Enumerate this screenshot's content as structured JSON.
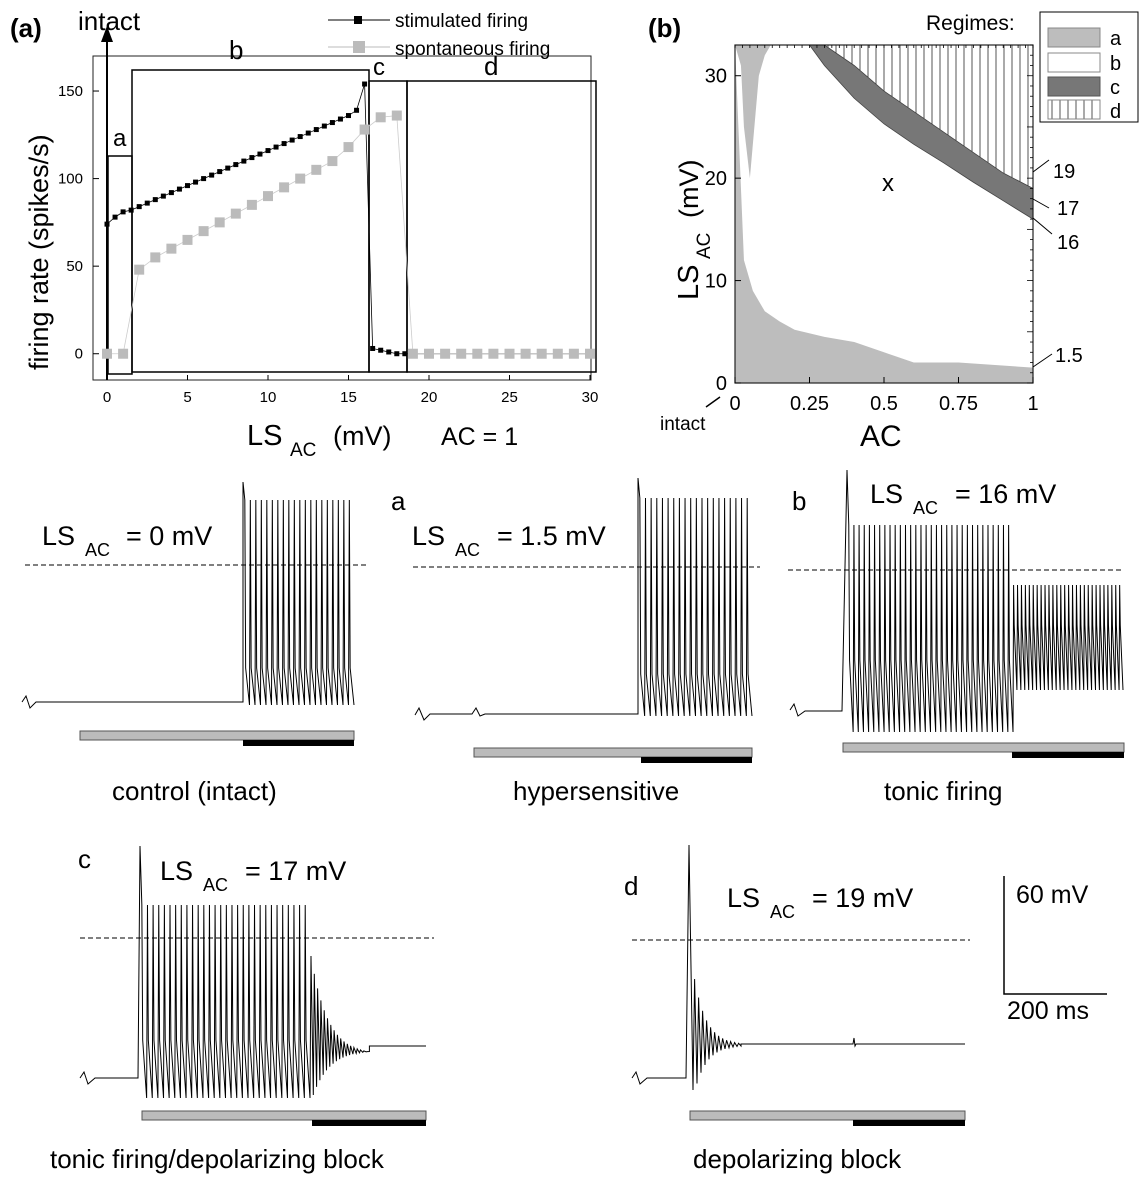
{
  "panel_a": {
    "panel_label": "(a)",
    "intact_label": "intact",
    "ylabel": "firing rate (spikes/s)",
    "xlabel_main": "LS",
    "xlabel_sub": "AC",
    "xlabel_unit": "(mV)",
    "ac_note": "AC = 1",
    "region_labels": [
      "a",
      "b",
      "c",
      "d"
    ],
    "legend": [
      "stimulated firing",
      "spontaneous firing"
    ]
  },
  "panel_b": {
    "panel_label": "(b)",
    "regimes_title": "Regimes:",
    "legend": [
      "a",
      "b",
      "c",
      "d"
    ],
    "ylabel_main": "LS",
    "ylabel_sub": "AC",
    "ylabel_unit": "(mV)",
    "xlabel": "AC",
    "intact_label": "intact",
    "marker": "x",
    "right_ticks": [
      "19",
      "17",
      "16",
      "1.5"
    ]
  },
  "traces": [
    {
      "tag": "",
      "ls_prefix": "LS",
      "ls_sub": "AC",
      "ls_value": "= 0 mV",
      "caption": "control (intact)"
    },
    {
      "tag": "a",
      "ls_prefix": "LS",
      "ls_sub": "AC",
      "ls_value": "= 1.5 mV",
      "caption": "hypersensitive"
    },
    {
      "tag": "b",
      "ls_prefix": "LS",
      "ls_sub": "AC",
      "ls_value": "= 16 mV",
      "caption": "tonic firing"
    },
    {
      "tag": "c",
      "ls_prefix": "LS",
      "ls_sub": "AC",
      "ls_value": "= 17 mV",
      "caption": "tonic firing/depolarizing block"
    },
    {
      "tag": "d",
      "ls_prefix": "LS",
      "ls_sub": "AC",
      "ls_value": "= 19 mV",
      "caption": "depolarizing block"
    }
  ],
  "scale_bar": {
    "voltage": "60 mV",
    "time": "200 ms"
  },
  "chart_data": [
    {
      "type": "scatter",
      "xlabel": "LS_AC (mV)",
      "ylabel": "firing rate (spikes/s)",
      "xlim": [
        0,
        30
      ],
      "ylim": [
        -15,
        170
      ],
      "xticks": [
        0,
        5,
        10,
        15,
        20,
        25,
        30
      ],
      "yticks": [
        0,
        50,
        100,
        150
      ],
      "series": [
        {
          "name": "stimulated firing",
          "color": "#000000",
          "x": [
            0,
            0.5,
            1,
            1.5,
            2,
            2.5,
            3,
            3.5,
            4,
            4.5,
            5,
            5.5,
            6,
            6.5,
            7,
            7.5,
            8,
            8.5,
            9,
            9.5,
            10,
            10.5,
            11,
            11.5,
            12,
            12.5,
            13,
            13.5,
            14,
            14.5,
            15,
            15.5,
            16,
            16.5,
            17,
            17.5,
            18,
            18.5,
            19,
            20,
            21,
            22,
            23,
            24,
            25,
            26,
            27,
            28,
            29,
            30
          ],
          "y": [
            74,
            78,
            81,
            82,
            84,
            86,
            88,
            90,
            92,
            94,
            96,
            98,
            100,
            102,
            104,
            106,
            108,
            110,
            112,
            114,
            116,
            118,
            120,
            122,
            124,
            126,
            128,
            130,
            132,
            134,
            136,
            139,
            154,
            3,
            2,
            1,
            0,
            0,
            0,
            0,
            0,
            0,
            0,
            0,
            0,
            0,
            0,
            0,
            0,
            0
          ]
        },
        {
          "name": "spontaneous firing",
          "color": "#bbbbbb",
          "x": [
            0,
            1,
            2,
            3,
            4,
            5,
            6,
            7,
            8,
            9,
            10,
            11,
            12,
            13,
            14,
            15,
            16,
            17,
            18,
            19,
            20,
            21,
            22,
            23,
            24,
            25,
            26,
            27,
            28,
            29,
            30
          ],
          "y": [
            0,
            0,
            48,
            55,
            60,
            65,
            70,
            75,
            80,
            85,
            90,
            95,
            100,
            105,
            110,
            118,
            128,
            135,
            136,
            0,
            0,
            0,
            0,
            0,
            0,
            0,
            0,
            0,
            0,
            0,
            0
          ]
        }
      ],
      "regions": [
        {
          "label": "a",
          "x": [
            0,
            1.5
          ]
        },
        {
          "label": "b",
          "x": [
            1.5,
            16
          ]
        },
        {
          "label": "c",
          "x": [
            16,
            18.5
          ]
        },
        {
          "label": "d",
          "x": [
            18.5,
            30
          ]
        }
      ]
    },
    {
      "type": "area",
      "xlabel": "AC",
      "ylabel": "LS_AC (mV)",
      "xlim": [
        0,
        1
      ],
      "ylim": [
        0,
        33
      ],
      "xticks": [
        0,
        0.25,
        0.5,
        0.75,
        1
      ],
      "xtick_labels": [
        "0",
        "0.25",
        "0.5",
        "0.75",
        "1"
      ],
      "yticks": [
        0,
        10,
        20,
        30
      ],
      "regimes": [
        {
          "name": "a",
          "color": "#bdbdbd"
        },
        {
          "name": "b",
          "color": "#ffffff"
        },
        {
          "name": "c",
          "color": "#777777"
        },
        {
          "name": "d",
          "color": "hatched"
        }
      ],
      "boundaries": {
        "a_lower": {
          "x": [
            0,
            0.03,
            0.06,
            0.1,
            0.15,
            0.2,
            0.3,
            0.4,
            0.5,
            0.6,
            0.75,
            1
          ],
          "y": [
            33,
            12,
            9,
            7,
            6,
            5.2,
            4.5,
            4,
            3,
            2,
            2,
            1.5
          ]
        },
        "a_upper": {
          "x": [
            0,
            0.02,
            0.03,
            0.05,
            0.08,
            0.1,
            0.12
          ],
          "y": [
            33,
            31,
            25,
            20,
            30,
            32,
            33
          ]
        },
        "c_lower": {
          "x": [
            0.25,
            0.3,
            0.4,
            0.5,
            0.6,
            0.7,
            0.8,
            0.9,
            1
          ],
          "y": [
            33,
            31,
            27.8,
            25.3,
            23.3,
            21.5,
            19.6,
            17.8,
            16
          ]
        },
        "c_upper": {
          "x": [
            0.25,
            0.3,
            0.4,
            0.5,
            0.6,
            0.7,
            0.8,
            0.9,
            1
          ],
          "y": [
            33,
            33,
            31,
            28.5,
            26.5,
            24.5,
            22.5,
            20.5,
            19
          ]
        }
      },
      "marker": {
        "label": "x",
        "x": 0.5,
        "y": 20
      },
      "annotations": [
        "19",
        "17",
        "16",
        "1.5"
      ]
    }
  ]
}
